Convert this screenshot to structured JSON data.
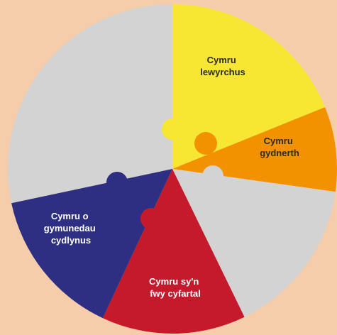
{
  "nodes": [
    {
      "lines": [
        "Cymru",
        "lewyrchus"
      ]
    },
    {
      "lines": [
        "Cymru",
        "gydnerth"
      ]
    },
    {
      "lines": [
        "Cymru sy'n",
        "fwy cyfartal"
      ]
    },
    {
      "lines": [
        "Cymru o",
        "gymunedau",
        "cydlynus"
      ]
    }
  ]
}
